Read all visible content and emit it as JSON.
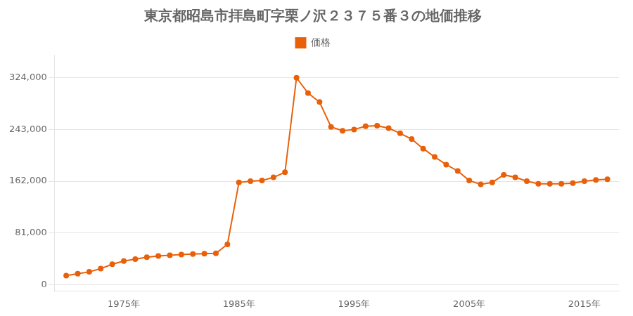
{
  "chart_data": {
    "type": "line",
    "title": "東京都昭島市拝島町字栗ノ沢２３７５番３の地価推移",
    "x": [
      1970,
      1971,
      1972,
      1973,
      1974,
      1975,
      1976,
      1977,
      1978,
      1979,
      1980,
      1981,
      1982,
      1983,
      1984,
      1985,
      1986,
      1987,
      1988,
      1989,
      1990,
      1991,
      1992,
      1993,
      1994,
      1995,
      1996,
      1997,
      1998,
      1999,
      2000,
      2001,
      2002,
      2003,
      2004,
      2005,
      2006,
      2007,
      2008,
      2009,
      2010,
      2011,
      2012,
      2013,
      2014,
      2015,
      2016,
      2017
    ],
    "series": [
      {
        "name": "価格",
        "color": "#E8610A",
        "marker": "circle",
        "values": [
          14000,
          17000,
          20000,
          25000,
          32000,
          37000,
          40000,
          43000,
          45000,
          46000,
          47000,
          48000,
          48500,
          49000,
          63000,
          160000,
          162000,
          163000,
          168000,
          176000,
          324000,
          300000,
          286000,
          247000,
          241000,
          243000,
          248000,
          249000,
          245000,
          237000,
          228000,
          213000,
          200000,
          188000,
          178000,
          163000,
          157000,
          160000,
          172000,
          168000,
          162000,
          158000,
          158000,
          158000,
          159000,
          162000,
          164000,
          165000
        ]
      }
    ],
    "xlim": [
      1969,
      2018
    ],
    "xticks": [
      {
        "value": 1975,
        "label": "1975年"
      },
      {
        "value": 1985,
        "label": "1985年"
      },
      {
        "value": 1995,
        "label": "1995年"
      },
      {
        "value": 2005,
        "label": "2005年"
      },
      {
        "value": 2015,
        "label": "2015年"
      }
    ],
    "ylim": [
      -10000,
      360000
    ],
    "yticks": [
      0,
      {
        "value": 81000,
        "label": "81,000"
      },
      {
        "value": 162000,
        "label": "162,000"
      },
      {
        "value": 243000,
        "label": "243,000"
      },
      {
        "value": 324000,
        "label": "324,000"
      }
    ],
    "grid": "y",
    "legend": "top"
  }
}
